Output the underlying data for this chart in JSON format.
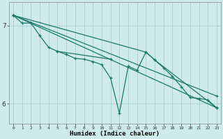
{
  "xlabel": "Humidex (Indice chaleur)",
  "ylabel": "",
  "bg_color": "#ceeaea",
  "grid_color": "#afd4d4",
  "line_color": "#1a7a6a",
  "xlim": [
    -0.5,
    23.5
  ],
  "ylim": [
    5.75,
    7.3
  ],
  "yticks": [
    6,
    7
  ],
  "xticks": [
    0,
    1,
    2,
    3,
    4,
    5,
    6,
    7,
    8,
    9,
    10,
    11,
    12,
    13,
    14,
    15,
    16,
    17,
    18,
    19,
    20,
    21,
    22,
    23
  ],
  "series": [
    [
      0,
      7.13
    ],
    [
      1,
      7.03
    ],
    [
      2,
      7.03
    ],
    [
      3,
      6.87
    ],
    [
      4,
      6.72
    ],
    [
      5,
      6.67
    ],
    [
      6,
      6.63
    ],
    [
      7,
      6.58
    ],
    [
      8,
      6.57
    ],
    [
      9,
      6.54
    ],
    [
      10,
      6.5
    ],
    [
      11,
      6.33
    ],
    [
      12,
      5.88
    ],
    [
      13,
      6.48
    ],
    [
      14,
      6.43
    ],
    [
      15,
      6.66
    ],
    [
      16,
      6.56
    ],
    [
      17,
      6.46
    ],
    [
      18,
      6.35
    ],
    [
      19,
      6.22
    ],
    [
      20,
      6.08
    ],
    [
      21,
      6.07
    ],
    [
      22,
      6.05
    ],
    [
      23,
      5.95
    ]
  ],
  "line1": [
    [
      0,
      7.13
    ],
    [
      23,
      5.95
    ]
  ],
  "line2": [
    [
      0,
      7.13
    ],
    [
      23,
      6.1
    ]
  ],
  "line3": [
    [
      5,
      6.67
    ],
    [
      11,
      6.57
    ]
  ],
  "line4": [
    [
      0,
      7.13
    ],
    [
      15,
      6.66
    ],
    [
      16,
      6.56
    ],
    [
      23,
      5.95
    ]
  ]
}
